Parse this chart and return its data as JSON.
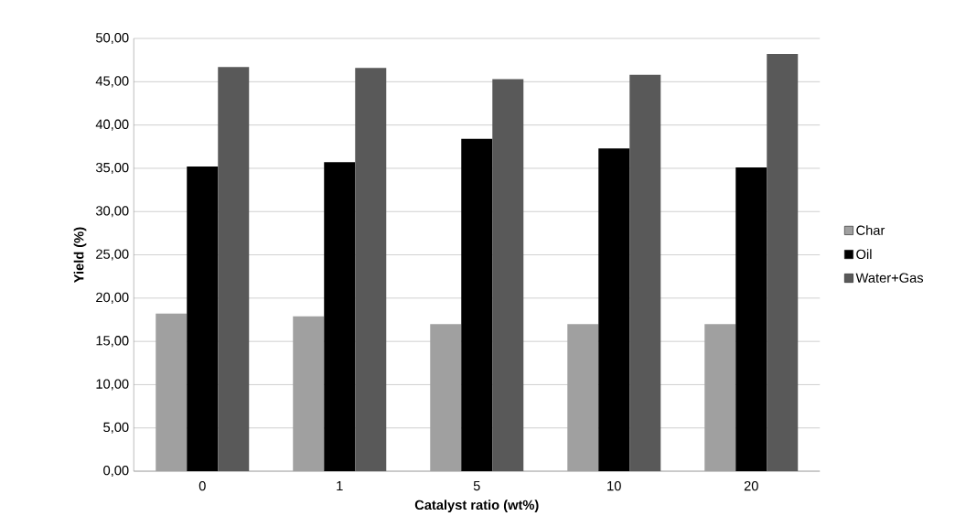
{
  "chart_data": {
    "type": "bar",
    "xlabel": "Catalyst ratio (wt%)",
    "ylabel": "Yield (%)",
    "categories": [
      "0",
      "1",
      "5",
      "10",
      "20"
    ],
    "series": [
      {
        "name": "Char",
        "color": "#a0a0a0",
        "values": [
          18.2,
          17.9,
          17.0,
          17.0,
          17.0
        ]
      },
      {
        "name": "Oil",
        "color": "#000000",
        "values": [
          35.2,
          35.7,
          38.4,
          37.3,
          35.1
        ]
      },
      {
        "name": "Water+Gas",
        "color": "#595959",
        "values": [
          46.7,
          46.6,
          45.3,
          45.8,
          48.2
        ]
      }
    ],
    "ylim": [
      0,
      50
    ],
    "yticks": [
      {
        "value": 0,
        "label": "0,00"
      },
      {
        "value": 5,
        "label": "5,00"
      },
      {
        "value": 10,
        "label": "10,00"
      },
      {
        "value": 15,
        "label": "15,00"
      },
      {
        "value": 20,
        "label": "20,00"
      },
      {
        "value": 25,
        "label": "25,00"
      },
      {
        "value": 30,
        "label": "30,00"
      },
      {
        "value": 35,
        "label": "35,00"
      },
      {
        "value": 40,
        "label": "40,00"
      },
      {
        "value": 45,
        "label": "45,00"
      },
      {
        "value": 50,
        "label": "50,00"
      }
    ],
    "grid": "y",
    "legend": "right"
  }
}
